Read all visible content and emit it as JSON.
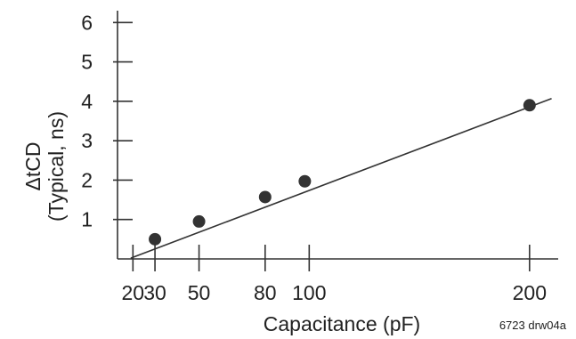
{
  "chart_data": {
    "type": "scatter",
    "title": "",
    "xlabel": "Capacitance (pF)",
    "ylabel_line1": "ΔtCD",
    "ylabel_line2": "(Typical, ns)",
    "x_ticks": [
      20,
      30,
      50,
      80,
      100,
      200
    ],
    "x_tick_labels": [
      "20",
      "30",
      "50",
      "80",
      "100",
      "200"
    ],
    "y_ticks": [
      1,
      2,
      3,
      4,
      5,
      6
    ],
    "y_tick_labels": [
      "1",
      "2",
      "3",
      "4",
      "5",
      "6"
    ],
    "xlim": [
      13,
      213
    ],
    "ylim": [
      0,
      6.3
    ],
    "grid": false,
    "series": [
      {
        "points": [
          {
            "x": 30,
            "y": 0.5
          },
          {
            "x": 50,
            "y": 0.95
          },
          {
            "x": 80,
            "y": 1.57
          },
          {
            "x": 98,
            "y": 1.97
          },
          {
            "x": 200,
            "y": 3.9
          }
        ]
      }
    ],
    "trend_line": {
      "x_start": 19,
      "y_start": 0.02,
      "x_end": 210,
      "y_end": 4.07
    },
    "colors": {
      "line": "#333333",
      "marker": "#333333",
      "axis": "#333333"
    }
  },
  "caption": "6723 drw04a"
}
